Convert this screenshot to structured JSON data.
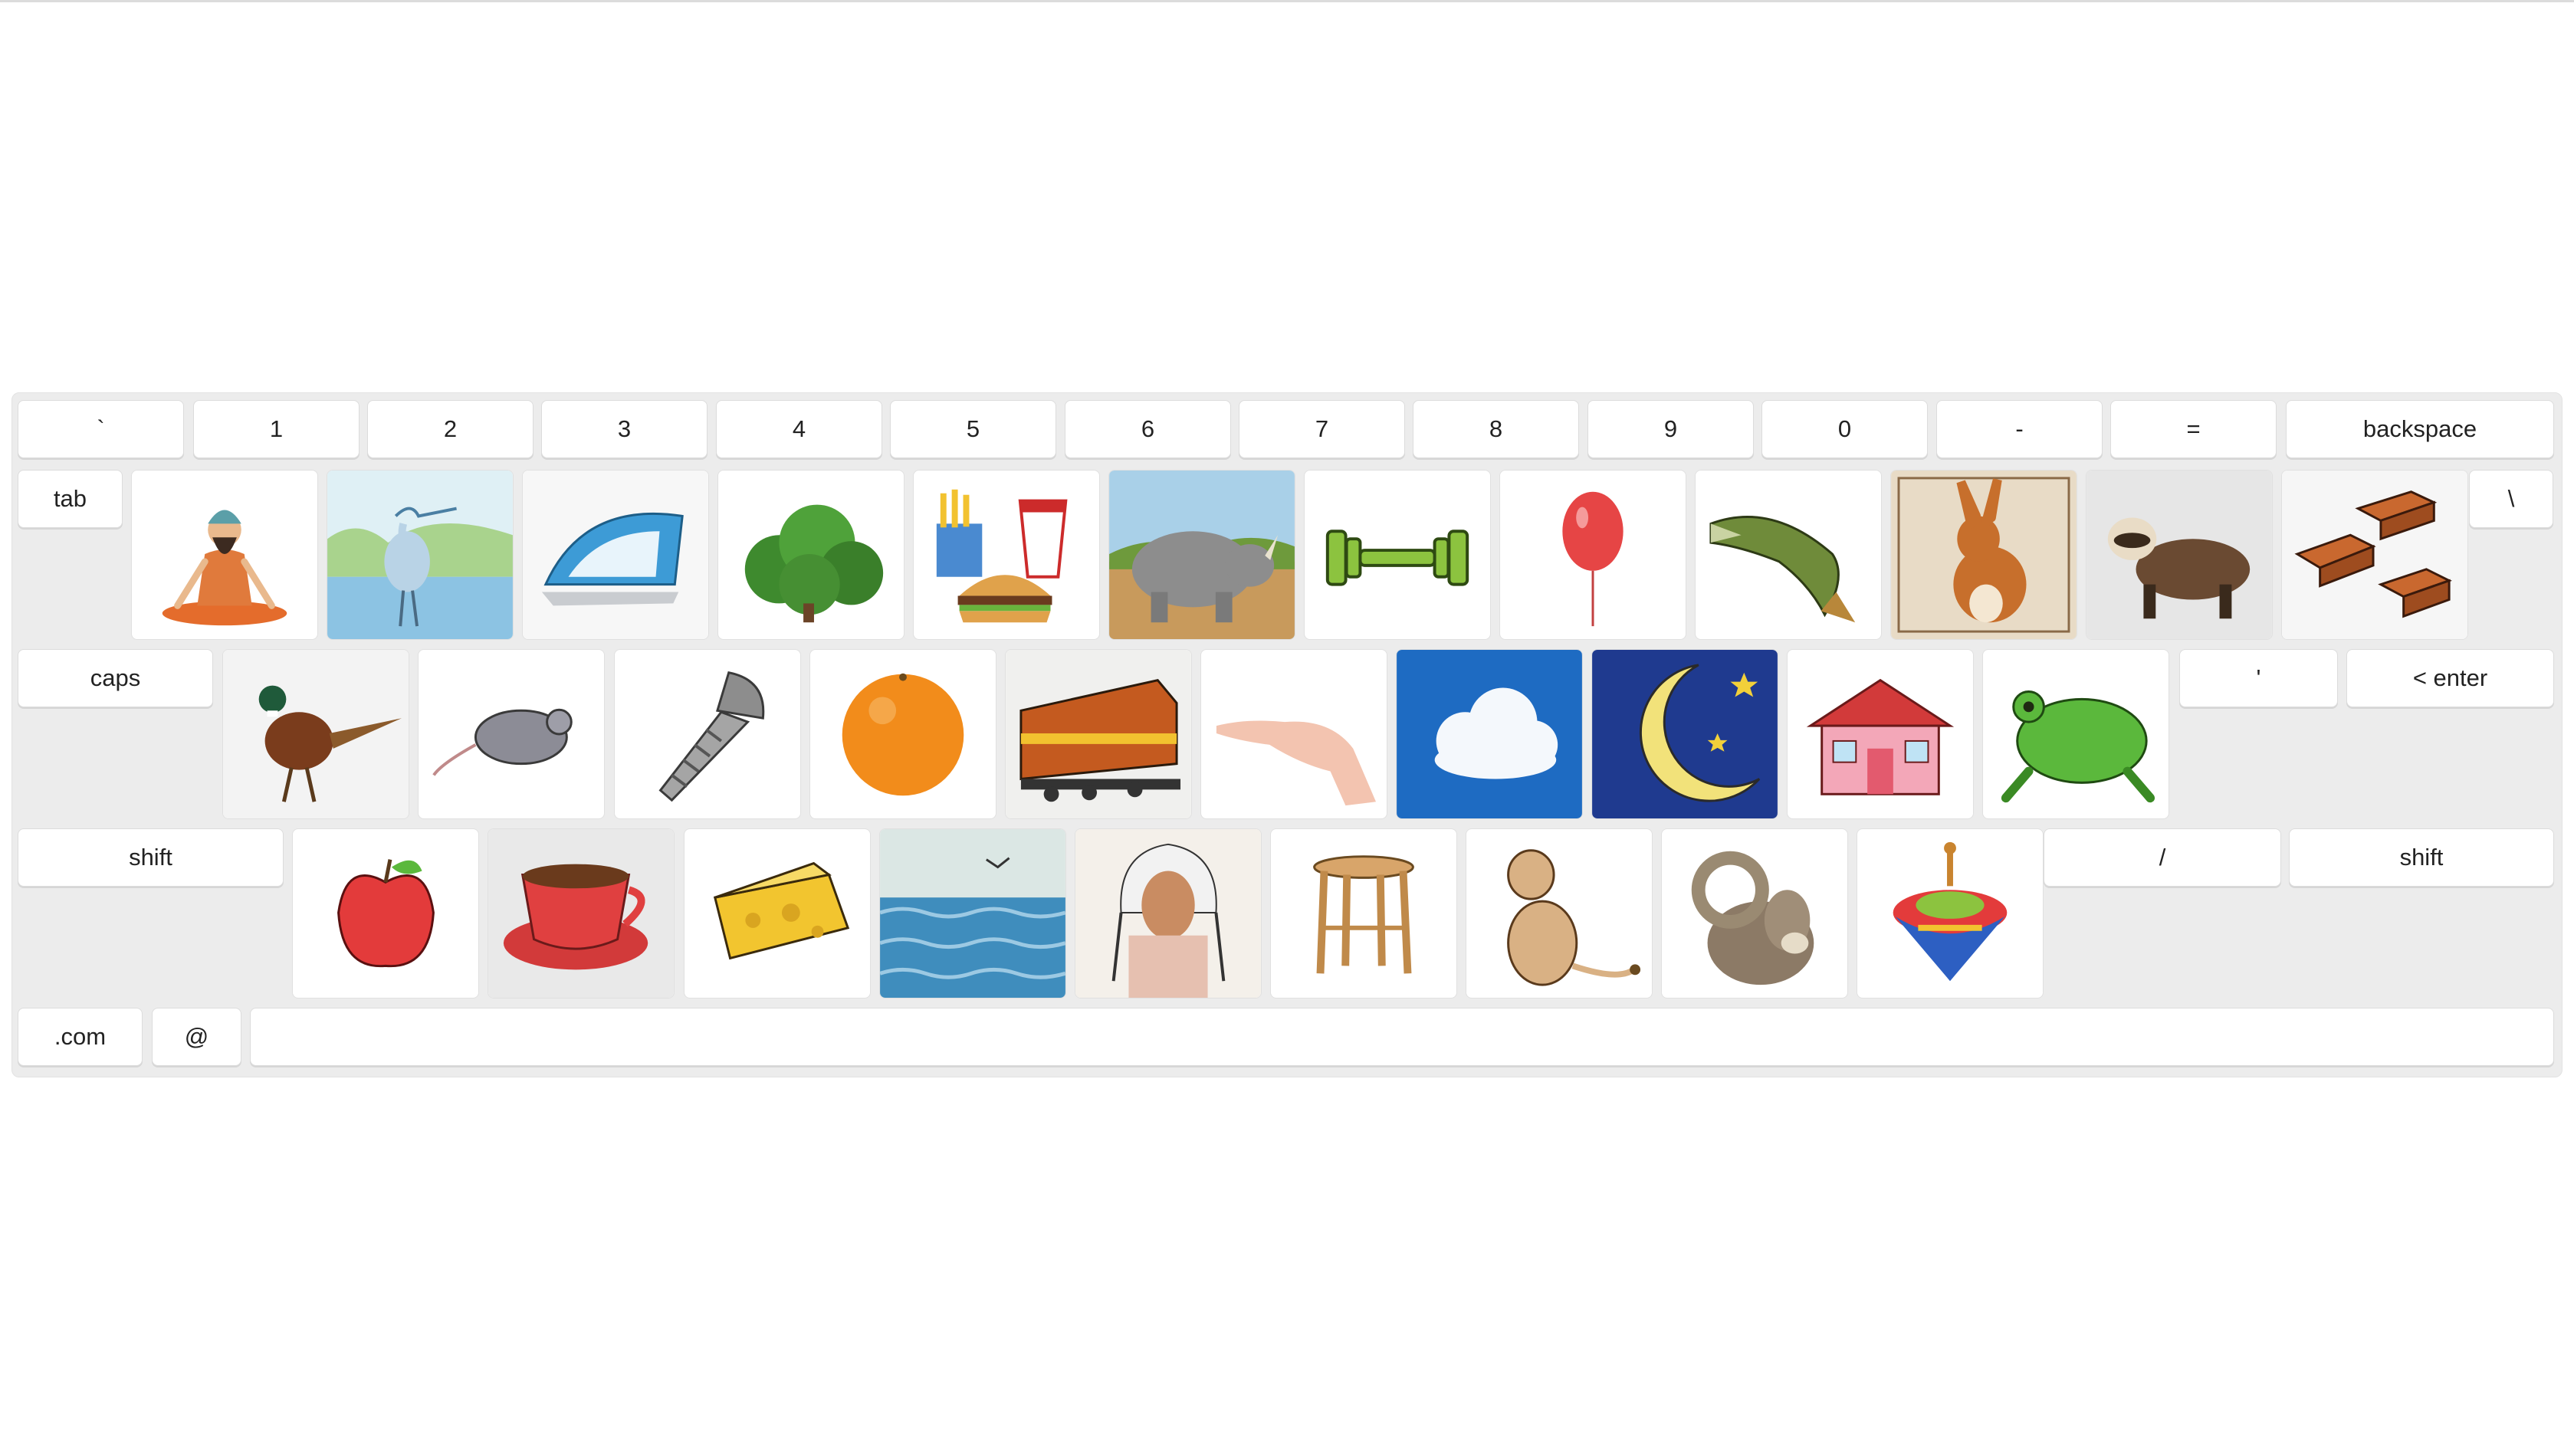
{
  "keyboard": {
    "number_row": [
      "`",
      "1",
      "2",
      "3",
      "4",
      "5",
      "6",
      "7",
      "8",
      "9",
      "0",
      "-",
      "=",
      "backspace"
    ],
    "tab_label": "tab",
    "backslash_label": "\\",
    "caps_label": "caps",
    "quote_label": "'",
    "enter_label": "< enter",
    "shift_left_label": "shift",
    "slash_label": "/",
    "shift_right_label": "shift",
    "dotcom_label": ".com",
    "at_label": "@",
    "space_label": ""
  },
  "picture_rows": [
    [
      "meditating-man",
      "heron",
      "clothes-iron",
      "bush",
      "fast-food",
      "rhinoceros",
      "dumbbell",
      "balloon",
      "pike-fish",
      "hare",
      "ferret",
      "bricks"
    ],
    [
      "pheasant",
      "mouse",
      "screw",
      "orange",
      "locomotive",
      "hand",
      "cloud",
      "moon",
      "house",
      "toad"
    ],
    [
      "apple",
      "cup",
      "cheese",
      "sea",
      "chief",
      "stool",
      "lion-cub",
      "ram",
      "spinning-top"
    ]
  ]
}
